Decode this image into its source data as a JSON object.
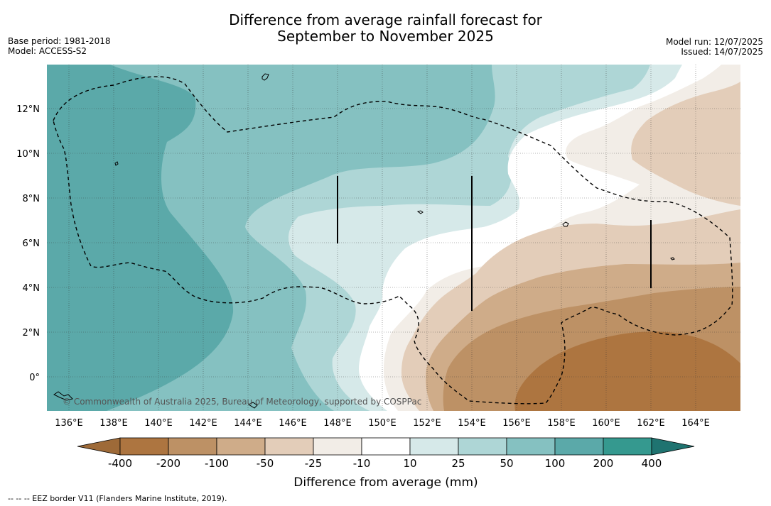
{
  "title": {
    "line1": "Difference from average rainfall forecast for",
    "line2": "September to November 2025"
  },
  "meta_left": {
    "base_period": "Base period: 1981-2018",
    "model": "Model: ACCESS-S2"
  },
  "meta_right": {
    "model_run": "Model run: 12/07/2025",
    "issued": "Issued: 14/07/2025"
  },
  "map": {
    "lon_range": [
      135,
      166
    ],
    "lat_range": [
      -1.5,
      14
    ],
    "lon_ticks": [
      "136°E",
      "138°E",
      "140°E",
      "142°E",
      "144°E",
      "146°E",
      "148°E",
      "150°E",
      "152°E",
      "154°E",
      "156°E",
      "158°E",
      "160°E",
      "162°E",
      "164°E"
    ],
    "lat_ticks": [
      "12°N",
      "10°N",
      "8°N",
      "6°N",
      "4°N",
      "2°N",
      "0°"
    ],
    "gridlines": true,
    "eez_border": "dashed",
    "copyright": "© Commonwealth of Australia 2025, Bureau of Meteorology, supported by COSPPac"
  },
  "legend": {
    "title": "Difference from average (mm)",
    "labels": [
      "-400",
      "-200",
      "-100",
      "-50",
      "-25",
      "-10",
      "10",
      "25",
      "50",
      "100",
      "200",
      "400"
    ],
    "colors": [
      "#ad7540",
      "#bd9165",
      "#cfac89",
      "#e3cdb9",
      "#f2ede7",
      "#ffffff",
      "#d6e9e9",
      "#aed6d6",
      "#85c1c1",
      "#5ba9a9",
      "#35998f",
      "#247f7b"
    ],
    "extend_low_color": "#9e6a38",
    "extend_high_color": "#1f7370"
  },
  "footnote": "--  --  -- EEZ border V11 (Flanders Marine Institute, 2019)."
}
